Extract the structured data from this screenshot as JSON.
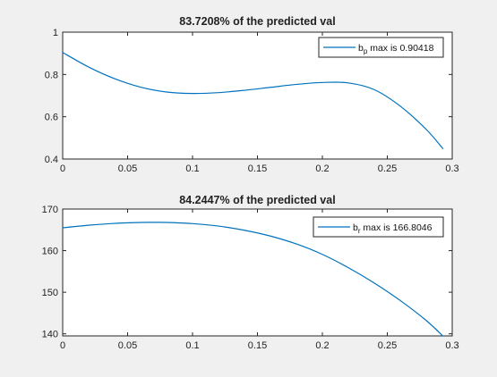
{
  "figure": {
    "background": "#f0f0f0",
    "axes_background": "#ffffff",
    "line_color": "#0072bd"
  },
  "chart_data": [
    {
      "type": "line",
      "title": "83.7208% of the predicted val",
      "xlim": [
        0,
        0.3
      ],
      "ylim": [
        0.4,
        1
      ],
      "xticks": [
        0,
        0.05,
        0.1,
        0.15,
        0.2,
        0.25,
        0.3
      ],
      "xtick_labels": [
        "0",
        "0.05",
        "0.1",
        "0.15",
        "0.2",
        "0.25",
        "0.3"
      ],
      "yticks": [
        0.4,
        0.6,
        0.8,
        1
      ],
      "ytick_labels": [
        "0.4",
        "0.6",
        "0.8",
        "1"
      ],
      "grid": false,
      "legend_position": "top-right",
      "series": [
        {
          "name_base": "b",
          "name_sub": "p",
          "name_rest": " max is 0.90418",
          "color": "#0072bd",
          "x": [
            0,
            0.02,
            0.04,
            0.06,
            0.08,
            0.1,
            0.12,
            0.14,
            0.16,
            0.18,
            0.2,
            0.22,
            0.24,
            0.26,
            0.28,
            0.293
          ],
          "y": [
            0.904,
            0.835,
            0.78,
            0.74,
            0.717,
            0.71,
            0.714,
            0.725,
            0.739,
            0.753,
            0.762,
            0.76,
            0.728,
            0.65,
            0.54,
            0.448
          ]
        }
      ]
    },
    {
      "type": "line",
      "title": "84.2447% of the predicted val",
      "xlim": [
        0,
        0.3
      ],
      "ylim": [
        139.5,
        170
      ],
      "xticks": [
        0,
        0.05,
        0.1,
        0.15,
        0.2,
        0.25,
        0.3
      ],
      "xtick_labels": [
        "0",
        "0.05",
        "0.1",
        "0.15",
        "0.2",
        "0.25",
        "0.3"
      ],
      "yticks": [
        140,
        150,
        160,
        170
      ],
      "ytick_labels": [
        "140",
        "150",
        "160",
        "170"
      ],
      "grid": false,
      "legend_position": "top-right",
      "series": [
        {
          "name_base": "b",
          "name_sub": "r",
          "name_rest": " max is 166.8046",
          "color": "#0072bd",
          "x": [
            0,
            0.02,
            0.04,
            0.06,
            0.07,
            0.08,
            0.1,
            0.12,
            0.14,
            0.16,
            0.18,
            0.2,
            0.22,
            0.24,
            0.26,
            0.28,
            0.293
          ],
          "y": [
            165.5,
            166.1,
            166.55,
            166.78,
            166.8,
            166.78,
            166.5,
            165.9,
            164.9,
            163.5,
            161.6,
            159.1,
            155.9,
            152.2,
            148.0,
            143.2,
            139.4
          ]
        }
      ]
    }
  ]
}
